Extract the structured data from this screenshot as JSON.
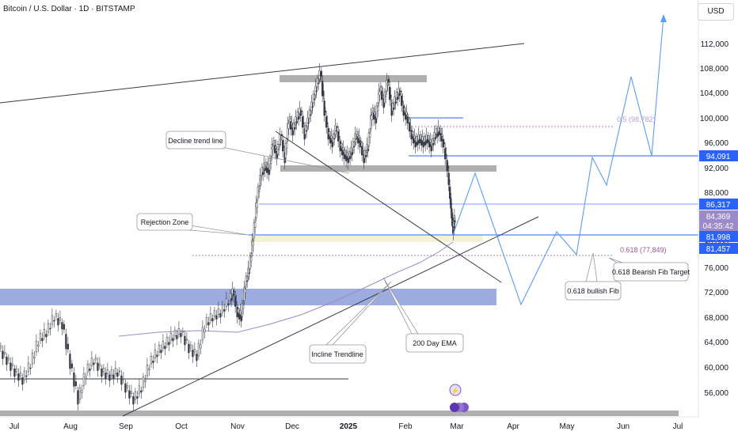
{
  "header": {
    "title": "Bitcoin / U.S. Dollar · 1D · BITSTAMP"
  },
  "currency_button": "USD",
  "chart_data": {
    "type": "line",
    "title": "Bitcoin / U.S. Dollar · 1D · BITSTAMP",
    "x_ticks": [
      "Jul",
      "Aug",
      "Sep",
      "Oct",
      "Nov",
      "Dec",
      "2025",
      "Feb",
      "Mar",
      "Apr",
      "May",
      "Jun",
      "Jul"
    ],
    "y_ticks": [
      56000,
      60000,
      64000,
      68000,
      72000,
      76000,
      80000,
      84000,
      88000,
      92000,
      96000,
      100000,
      104000,
      108000,
      112000
    ],
    "y_tick_labels": [
      "56,000",
      "60,000",
      "64,000",
      "68,000",
      "72,000",
      "76,000",
      "80,000",
      "84,000",
      "88,000",
      "92,000",
      "96,000",
      "100,000",
      "104,000",
      "108,000",
      "112,000"
    ],
    "ylim": [
      53000,
      118000
    ],
    "price_labels": [
      {
        "text": "94,091",
        "value": 94091,
        "color": "#2962ff"
      },
      {
        "text": "86,317",
        "value": 86317,
        "color": "#2962ff"
      },
      {
        "text": "84,369",
        "value": 84369,
        "color": "#9c89c9"
      },
      {
        "text": "04:35:42",
        "value": 83350,
        "color": "#9c89c9"
      },
      {
        "text": "81,998",
        "value": 81998,
        "color": "#2962ff"
      },
      {
        "text": "81,457",
        "value": 81457,
        "color": "#2962ff"
      }
    ],
    "annotations": {
      "decline_trend_line": "Decline trend line",
      "rejection_zone": "Rejection Zone",
      "incline_trendline": "Incline Trendline",
      "ema_200": "200 Day EMA",
      "bullish_fib": "0.618 bullish Fib",
      "bearish_fib_target": "0.618 Bearish Fib Target",
      "fib_05": "0.5 (98,782)",
      "fib_0618": "0.618 (77,849)"
    },
    "projection": [
      {
        "x": 572,
        "y": 297
      },
      {
        "x": 600,
        "y": 219
      },
      {
        "x": 658,
        "y": 385
      },
      {
        "x": 703,
        "y": 293
      },
      {
        "x": 728,
        "y": 322
      },
      {
        "x": 748,
        "y": 199
      },
      {
        "x": 766,
        "y": 234
      },
      {
        "x": 797,
        "y": 97
      },
      {
        "x": 823,
        "y": 197
      },
      {
        "x": 838,
        "y": 20
      }
    ]
  },
  "colors": {
    "candle": "#363a45",
    "blue_line": "#2962ff",
    "ema": "#9c89c9",
    "fib": "#a052a0",
    "zone_blue": "#8c9ed9",
    "zone_gray": "#a6a6a6",
    "zone_yellow": "#f3f1d8",
    "projection": "#5b9cf5"
  }
}
